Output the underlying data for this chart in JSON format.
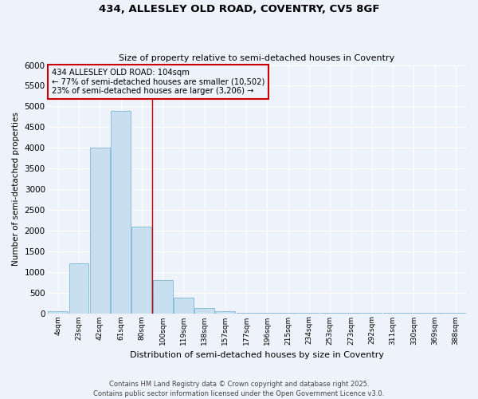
{
  "title_line1": "434, ALLESLEY OLD ROAD, COVENTRY, CV5 8GF",
  "title_line2": "Size of property relative to semi-detached houses in Coventry",
  "xlabel": "Distribution of semi-detached houses by size in Coventry",
  "ylabel": "Number of semi-detached properties",
  "categories": [
    "4sqm",
    "23sqm",
    "42sqm",
    "61sqm",
    "80sqm",
    "100sqm",
    "119sqm",
    "138sqm",
    "157sqm",
    "177sqm",
    "196sqm",
    "215sqm",
    "234sqm",
    "253sqm",
    "273sqm",
    "292sqm",
    "311sqm",
    "330sqm",
    "369sqm",
    "388sqm"
  ],
  "values": [
    40,
    1200,
    4000,
    4900,
    2100,
    800,
    370,
    130,
    50,
    10,
    5,
    3,
    2,
    2,
    1,
    1,
    1,
    1,
    1,
    1
  ],
  "bar_color": "#c8dff0",
  "bar_edge_color": "#7fb8d8",
  "annotation_text_line1": "434 ALLESLEY OLD ROAD: 104sqm",
  "annotation_text_line2": "← 77% of semi-detached houses are smaller (10,502)",
  "annotation_text_line3": "23% of semi-detached houses are larger (3,206) →",
  "ylim": [
    0,
    6000
  ],
  "yticks": [
    0,
    500,
    1000,
    1500,
    2000,
    2500,
    3000,
    3500,
    4000,
    4500,
    5000,
    5500,
    6000
  ],
  "footer_line1": "Contains HM Land Registry data © Crown copyright and database right 2025.",
  "footer_line2": "Contains public sector information licensed under the Open Government Licence v3.0.",
  "bg_color": "#eef2fb",
  "grid_color": "#ffffff",
  "annotation_box_color": "#cc0000",
  "vline_color": "#cc0000",
  "vline_x": 4.5
}
